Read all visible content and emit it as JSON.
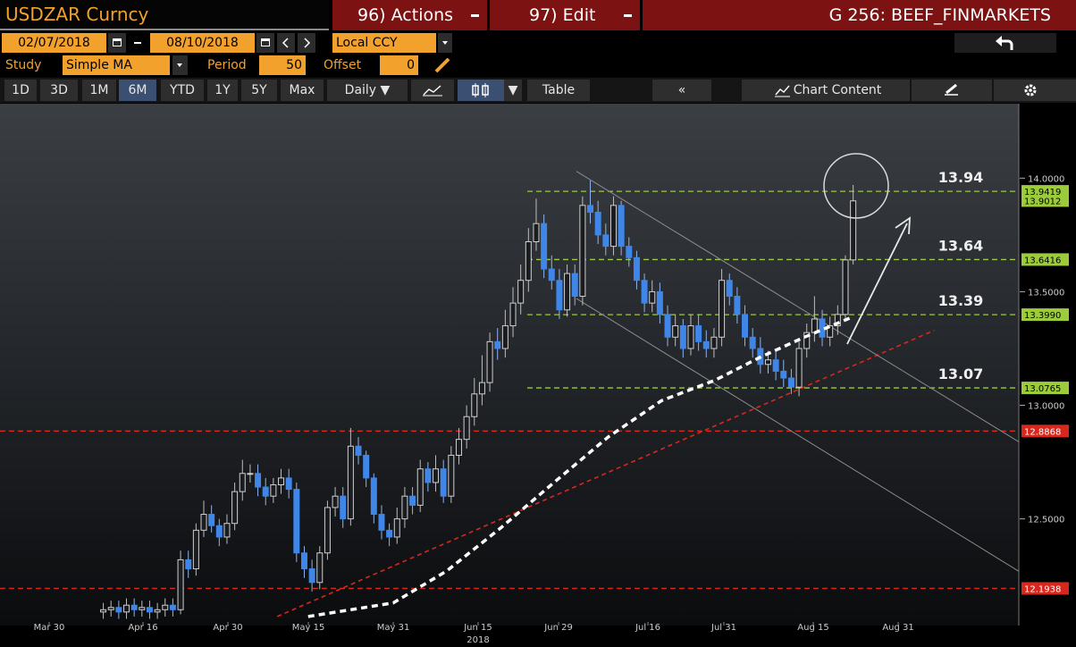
{
  "toolbar": {
    "security": "USDZAR Curncy",
    "actions": "96) Actions",
    "edit": "97) Edit",
    "page": "G 256: BEEF_FINMARKETS",
    "start_date": "02/07/2018",
    "end_date": "08/10/2018",
    "currency": "Local CCY",
    "study_label": "Study",
    "study": "Simple MA",
    "period_label": "Period",
    "period": 50,
    "offset_label": "Offset",
    "offset": 0,
    "ranges": [
      "1D",
      "3D",
      "1M",
      "6M",
      "YTD",
      "1Y",
      "5Y",
      "Max"
    ],
    "active_range": 3,
    "frequency": "Daily",
    "table": "Table",
    "chart_content": "Chart Content"
  },
  "chart_data": {
    "type": "candlestick",
    "up_color": "#cfcfcf",
    "down_color": "#3f86e8",
    "x": [
      7,
      8,
      9,
      10,
      11,
      12,
      13,
      14,
      15,
      16,
      17,
      18,
      19,
      20,
      21,
      22,
      23,
      24,
      25,
      26,
      27,
      28,
      29,
      30,
      31,
      32,
      33,
      34,
      35,
      36,
      37,
      38,
      39,
      40,
      41,
      42,
      43,
      44,
      45,
      46,
      47,
      48,
      49,
      50,
      51,
      52,
      53,
      54,
      55,
      56,
      57,
      58,
      59,
      60,
      61,
      62,
      63,
      64,
      65,
      66,
      67,
      68,
      69,
      70,
      71,
      72,
      73,
      74,
      75,
      76,
      77,
      78,
      79,
      80,
      81,
      82,
      83,
      84,
      85,
      86,
      87,
      88,
      89,
      90,
      91,
      92,
      93,
      94,
      95,
      96,
      97,
      98,
      99,
      100,
      101,
      102,
      103,
      104
    ],
    "open": [
      12.09,
      12.1,
      12.11,
      12.09,
      12.12,
      12.1,
      12.11,
      12.09,
      12.1,
      12.12,
      12.1,
      12.32,
      12.28,
      12.45,
      12.52,
      12.47,
      12.42,
      12.48,
      12.62,
      12.7,
      12.7,
      12.64,
      12.6,
      12.65,
      12.68,
      12.63,
      12.35,
      12.28,
      12.22,
      12.35,
      12.55,
      12.6,
      12.5,
      12.82,
      12.78,
      12.68,
      12.52,
      12.45,
      12.42,
      12.5,
      12.6,
      12.56,
      12.72,
      12.66,
      12.72,
      12.6,
      12.78,
      12.85,
      12.95,
      13.05,
      13.1,
      13.28,
      13.25,
      13.35,
      13.45,
      13.55,
      13.72,
      13.8,
      13.6,
      13.55,
      13.42,
      13.58,
      13.48,
      13.88,
      13.85,
      13.75,
      13.7,
      13.88,
      13.7,
      13.65,
      13.55,
      13.45,
      13.5,
      13.4,
      13.3,
      13.35,
      13.25,
      13.35,
      13.28,
      13.25,
      13.3,
      13.55,
      13.48,
      13.4,
      13.3,
      13.25,
      13.18,
      13.2,
      13.15,
      13.12,
      13.08,
      13.25,
      13.32,
      13.38,
      13.3,
      13.35,
      13.4,
      13.64
    ],
    "high": [
      12.13,
      12.14,
      12.14,
      12.15,
      12.15,
      12.14,
      12.14,
      12.13,
      12.15,
      12.15,
      12.36,
      12.36,
      12.48,
      12.58,
      12.56,
      12.5,
      12.52,
      12.66,
      12.76,
      12.74,
      12.74,
      12.68,
      12.68,
      12.72,
      12.72,
      12.66,
      12.38,
      12.32,
      12.38,
      12.58,
      12.64,
      12.64,
      12.9,
      12.86,
      12.8,
      12.7,
      12.56,
      12.48,
      12.55,
      12.64,
      12.64,
      12.76,
      12.75,
      12.78,
      12.76,
      12.82,
      12.9,
      13.0,
      13.12,
      13.22,
      13.32,
      13.34,
      13.42,
      13.52,
      13.62,
      13.78,
      13.91,
      13.84,
      13.66,
      13.6,
      13.62,
      13.62,
      13.92,
      13.99,
      13.9,
      13.8,
      13.92,
      13.9,
      13.74,
      13.68,
      13.58,
      13.55,
      13.54,
      13.44,
      13.4,
      13.38,
      13.4,
      13.4,
      13.33,
      13.34,
      13.6,
      13.58,
      13.52,
      13.44,
      13.34,
      13.3,
      13.24,
      13.24,
      13.2,
      13.16,
      13.28,
      13.36,
      13.48,
      13.42,
      13.39,
      13.44,
      13.66,
      13.97
    ],
    "low": [
      12.06,
      12.07,
      12.06,
      12.06,
      12.07,
      12.07,
      12.06,
      12.06,
      12.07,
      12.07,
      12.08,
      12.24,
      12.25,
      12.42,
      12.44,
      12.38,
      12.39,
      12.45,
      12.58,
      12.66,
      12.6,
      12.56,
      12.57,
      12.61,
      12.59,
      12.31,
      12.24,
      12.18,
      12.19,
      12.32,
      12.51,
      12.46,
      12.47,
      12.74,
      12.64,
      12.48,
      12.41,
      12.38,
      12.39,
      12.46,
      12.52,
      12.53,
      12.62,
      12.62,
      12.57,
      12.57,
      12.74,
      12.81,
      12.91,
      13.0,
      13.06,
      13.2,
      13.21,
      13.3,
      13.4,
      13.5,
      13.68,
      13.56,
      13.51,
      13.38,
      13.39,
      13.44,
      13.44,
      13.8,
      13.71,
      13.66,
      13.66,
      13.66,
      13.61,
      13.51,
      13.41,
      13.41,
      13.36,
      13.26,
      13.26,
      13.21,
      13.22,
      13.24,
      13.21,
      13.21,
      13.26,
      13.44,
      13.36,
      13.26,
      13.21,
      13.14,
      13.14,
      13.11,
      13.08,
      13.05,
      13.04,
      13.21,
      13.28,
      13.26,
      13.26,
      13.31,
      13.38,
      13.62
    ],
    "close": [
      12.1,
      12.11,
      12.09,
      12.12,
      12.1,
      12.11,
      12.09,
      12.1,
      12.12,
      12.1,
      12.32,
      12.28,
      12.45,
      12.52,
      12.47,
      12.42,
      12.48,
      12.62,
      12.7,
      12.7,
      12.64,
      12.6,
      12.65,
      12.68,
      12.63,
      12.35,
      12.28,
      12.22,
      12.35,
      12.55,
      12.6,
      12.5,
      12.82,
      12.78,
      12.68,
      12.52,
      12.45,
      12.42,
      12.5,
      12.6,
      12.56,
      12.72,
      12.66,
      12.72,
      12.6,
      12.78,
      12.85,
      12.95,
      13.05,
      13.1,
      13.28,
      13.25,
      13.35,
      13.45,
      13.55,
      13.72,
      13.8,
      13.6,
      13.55,
      13.42,
      13.58,
      13.48,
      13.88,
      13.85,
      13.75,
      13.7,
      13.88,
      13.7,
      13.65,
      13.55,
      13.45,
      13.5,
      13.4,
      13.3,
      13.35,
      13.25,
      13.35,
      13.28,
      13.25,
      13.3,
      13.55,
      13.48,
      13.4,
      13.3,
      13.25,
      13.18,
      13.2,
      13.15,
      13.12,
      13.08,
      13.25,
      13.32,
      13.38,
      13.3,
      13.35,
      13.4,
      13.64,
      13.9
    ],
    "moving_average": {
      "color": "#ffffff",
      "x": [
        33.5,
        44.5,
        51.4,
        58.4,
        65.3,
        72.3,
        79.2,
        86.1,
        91.9,
        97.7,
        104.0
      ],
      "values": [
        12.07,
        12.13,
        12.27,
        12.46,
        12.66,
        12.86,
        13.02,
        13.11,
        13.21,
        13.3,
        13.39
      ]
    },
    "trendlines": [
      {
        "color": "#d8281e",
        "dashed": true,
        "x": [
          29.5,
          114.5
        ],
        "values": [
          12.07,
          13.33
        ]
      },
      {
        "color": "#8c8c8c",
        "dashed": false,
        "x": [
          68.2,
          125.4
        ],
        "values": [
          14.03,
          12.84
        ]
      },
      {
        "color": "#8c8c8c",
        "dashed": false,
        "x": [
          68.2,
          125.4
        ],
        "values": [
          13.47,
          12.27
        ]
      }
    ],
    "last_price": 13.9012,
    "levels": [
      {
        "value": 13.9419,
        "color": "#9ccb3c",
        "annotation": "13.94"
      },
      {
        "value": 13.6416,
        "color": "#9ccb3c",
        "annotation": "13.64"
      },
      {
        "value": 13.399,
        "label": "13.3990",
        "color": "#9ccb3c",
        "annotation": "13.39"
      },
      {
        "value": 13.0765,
        "color": "#9ccb3c",
        "annotation": "13.07"
      },
      {
        "value": 12.8868,
        "color": "#d8281e"
      },
      {
        "value": 12.1938,
        "color": "#d8281e"
      }
    ],
    "ylim": [
      12.05,
      14.32
    ],
    "yticks": [
      {
        "value": 12.5,
        "label": "12.5000"
      },
      {
        "value": 13,
        "label": "13.0000"
      },
      {
        "value": 13.5,
        "label": "13.5000"
      },
      {
        "value": 14,
        "label": "14.0000"
      }
    ],
    "xlim": [
      -6.36,
      125.43
    ],
    "xticks": [
      {
        "value": 0,
        "label": "Mar 30"
      },
      {
        "value": 12.14,
        "label": "Apr 16"
      },
      {
        "value": 23.12,
        "label": "Apr 30"
      },
      {
        "value": 33.53,
        "label": "May 15"
      },
      {
        "value": 44.51,
        "label": "May 31"
      },
      {
        "value": 55.49,
        "label": "Jun 15"
      },
      {
        "value": 65.9,
        "label": "Jun 29"
      },
      {
        "value": 77.46,
        "label": "Jul 16"
      },
      {
        "value": 87.28,
        "label": "Jul 31"
      },
      {
        "value": 98.84,
        "label": "Aug 15"
      },
      {
        "value": 109.83,
        "label": "Aug 31"
      }
    ],
    "year_label": "2018",
    "year_at": 55.49
  }
}
